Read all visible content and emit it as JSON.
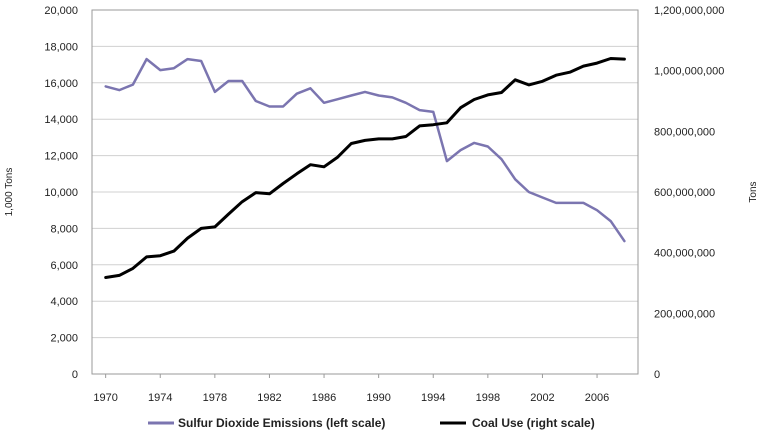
{
  "chart_data": {
    "type": "line",
    "x": [
      1970,
      1971,
      1972,
      1973,
      1974,
      1975,
      1976,
      1977,
      1978,
      1979,
      1980,
      1981,
      1982,
      1983,
      1984,
      1985,
      1986,
      1987,
      1988,
      1989,
      1990,
      1991,
      1992,
      1993,
      1994,
      1995,
      1996,
      1997,
      1998,
      1999,
      2000,
      2001,
      2002,
      2003,
      2004,
      2005,
      2006,
      2007,
      2008
    ],
    "x_tick_labels": [
      "1970",
      "1974",
      "1978",
      "1982",
      "1986",
      "1990",
      "1994",
      "1998",
      "2002",
      "2006"
    ],
    "x_ticks": [
      1970,
      1974,
      1978,
      1982,
      1986,
      1990,
      1994,
      1998,
      2002,
      2006
    ],
    "xlim": [
      1969,
      2009
    ],
    "y_left": {
      "label": "1,000 Tons",
      "ylim": [
        0,
        20000
      ],
      "tick_labels": [
        "0",
        "2,000",
        "4,000",
        "6,000",
        "8,000",
        "10,000",
        "12,000",
        "14,000",
        "16,000",
        "18,000",
        "20,000"
      ],
      "ticks": [
        0,
        2000,
        4000,
        6000,
        8000,
        10000,
        12000,
        14000,
        16000,
        18000,
        20000
      ]
    },
    "y_right": {
      "label": "Tons",
      "ylim": [
        0,
        1200000000
      ],
      "tick_labels": [
        "0",
        "200,000,000",
        "400,000,000",
        "600,000,000",
        "800,000,000",
        "1,000,000,000",
        "1,200,000,000"
      ],
      "ticks": [
        0,
        200000000,
        400000000,
        600000000,
        800000000,
        1000000000,
        1200000000
      ]
    },
    "series": [
      {
        "name": "Sulfur Dioxide Emissions (left scale)",
        "axis": "left",
        "color": "#7b75b0",
        "values": [
          15800,
          15600,
          15900,
          17300,
          16700,
          16800,
          17300,
          17200,
          15500,
          16100,
          16100,
          15000,
          14700,
          14700,
          15400,
          15700,
          14900,
          15100,
          15300,
          15500,
          15300,
          15200,
          14900,
          14500,
          14400,
          11700,
          12300,
          12700,
          12500,
          11800,
          10700,
          10000,
          9700,
          9400,
          9400,
          9400,
          9000,
          8400,
          7300
        ]
      },
      {
        "name": "Coal Use (right scale)",
        "axis": "right",
        "color": "#000000",
        "values": [
          318000000,
          325000000,
          348000000,
          386000000,
          390000000,
          405000000,
          448000000,
          480000000,
          485000000,
          527000000,
          568000000,
          598000000,
          594000000,
          628000000,
          660000000,
          690000000,
          683000000,
          715000000,
          760000000,
          770000000,
          775000000,
          775000000,
          783000000,
          818000000,
          822000000,
          828000000,
          878000000,
          905000000,
          920000000,
          928000000,
          970000000,
          953000000,
          965000000,
          985000000,
          995000000,
          1015000000,
          1025000000,
          1040000000,
          1038000000
        ]
      }
    ],
    "legend": "bottom"
  }
}
